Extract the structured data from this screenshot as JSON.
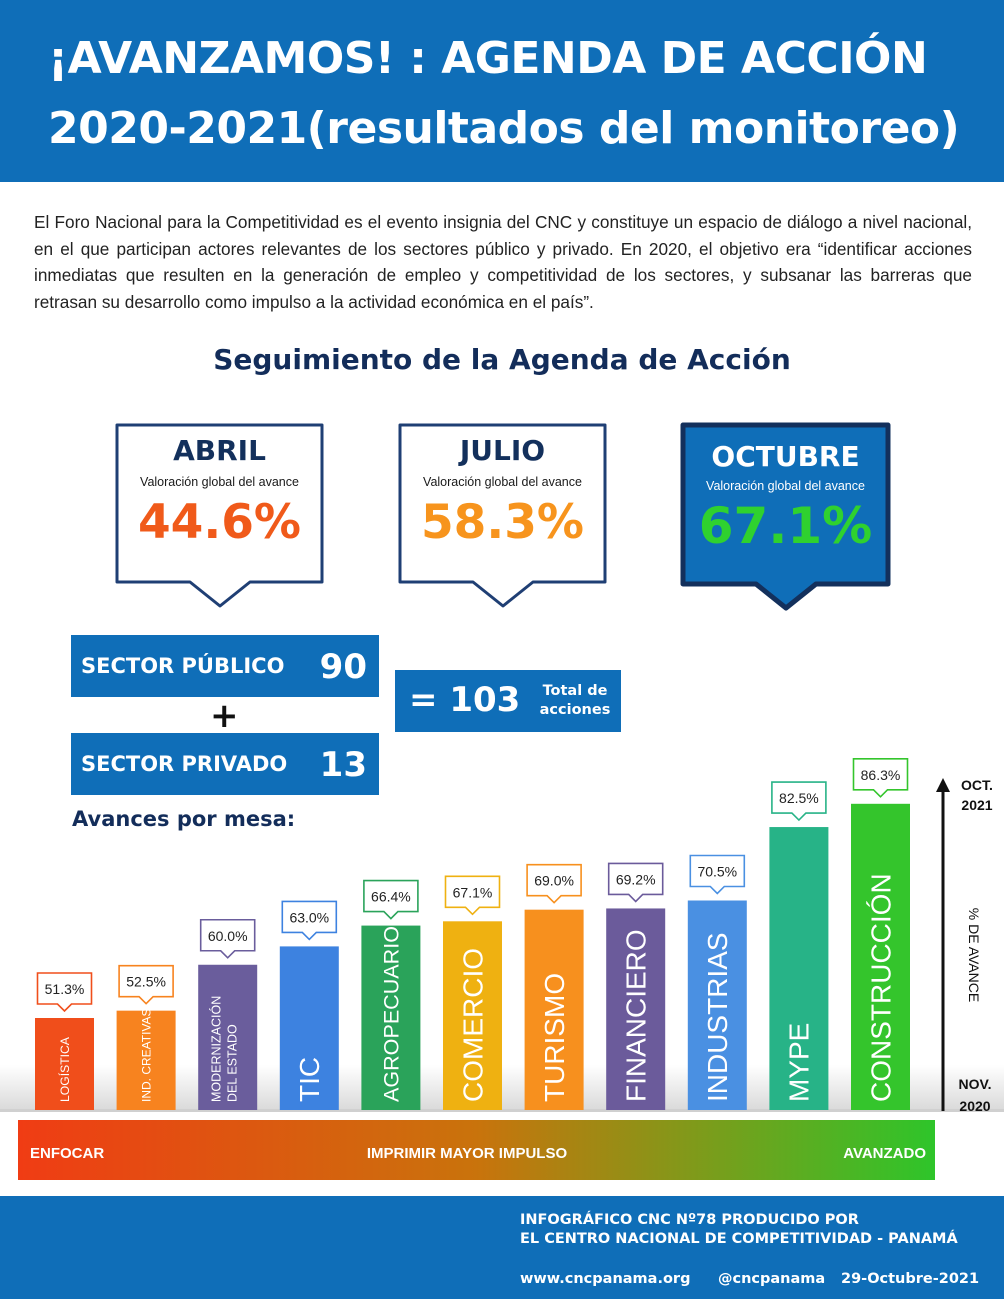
{
  "header": {
    "line1": "¡AVANZAMOS! : AGENDA DE ACCIÓN",
    "line2": "2020-2021(resultados del monitoreo)"
  },
  "intro": "El Foro Nacional para la Competitividad es el evento insignia del CNC y constituye un espacio de diálogo a nivel nacional, en el que participan actores relevantes de los sectores público y privado. En 2020, el objetivo era “identificar acciones inmediatas que resulten en la generación de empleo y competitividad de los sectores, y subsanar las barreras que retrasan su desarrollo como impulso a la actividad económica en el país”.",
  "subtitle": "Seguimiento de la Agenda de Acción",
  "periods": [
    {
      "name": "ABRIL",
      "label": "Valoración global del avance",
      "value": "44.6%",
      "color": "#f05a1a"
    },
    {
      "name": "JULIO",
      "label": "Valoración global del avance",
      "value": "58.3%",
      "color": "#f7941d"
    },
    {
      "name": "OCTUBRE",
      "label": "Valoración global del avance",
      "value": "67.1%",
      "color": "#2fd12f"
    }
  ],
  "sectors": {
    "public_label": "SECTOR PÚBLICO",
    "public_value": "90",
    "plus": "+",
    "private_label": "SECTOR PRIVADO",
    "private_value": "13",
    "total_value": "= 103",
    "total_label": "Total de acciones"
  },
  "section_title": "Avances por mesa:",
  "chart_data": {
    "type": "bar",
    "title": "Avances por mesa:",
    "categories": [
      "LOGÍSTICA",
      "IND. CREATIVAS",
      "MODERNIZACIÓN DEL ESTADO",
      "TIC",
      "AGROPECUARIO",
      "COMERCIO",
      "TURISMO",
      "FINANCIERO",
      "INDUSTRIAS",
      "MYPE",
      "CONSTRUCCIÓN"
    ],
    "values": [
      51.3,
      52.5,
      60.0,
      63.0,
      66.4,
      67.1,
      69.0,
      69.2,
      70.5,
      82.5,
      86.3
    ],
    "value_labels": [
      "51.3%",
      "52.5%",
      "60.0%",
      "63.0%",
      "66.4%",
      "67.1%",
      "69.0%",
      "69.2%",
      "70.5%",
      "82.5%",
      "86.3%"
    ],
    "colors": [
      "#f04e1b",
      "#f7831f",
      "#6a5d9c",
      "#3d82e0",
      "#2aa35a",
      "#efb111",
      "#f7901e",
      "#6b5b9b",
      "#4a90e2",
      "#27b387",
      "#34c52c"
    ],
    "ylabel": "% DE AVANCE",
    "axis_top": [
      "OCT.",
      "2021"
    ],
    "axis_bottom": [
      "NOV.",
      "2020"
    ],
    "scale_labels": [
      "ENFOCAR",
      "IMPRIMIR MAYOR IMPULSO",
      "AVANZADO"
    ],
    "ylim": [
      0,
      100
    ]
  },
  "footer": {
    "line1": "INFOGRÁFICO CNC Nº78 PRODUCIDO POR",
    "line2": "EL CENTRO NACIONAL DE COMPETITIVIDAD - PANAMÁ",
    "web": "www.cncpanama.org",
    "social": "@cncpanama",
    "date": "29-Octubre-2021"
  }
}
